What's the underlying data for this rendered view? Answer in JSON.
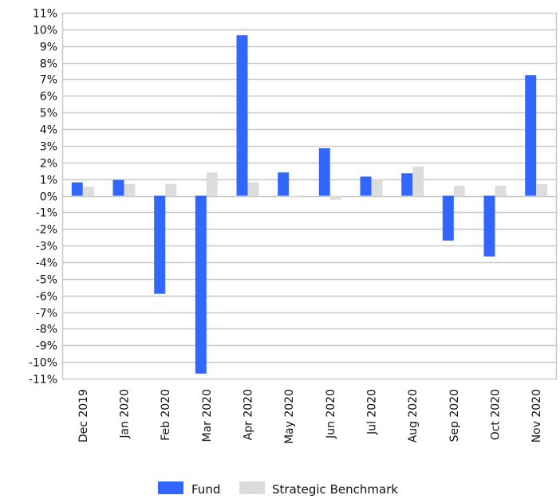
{
  "chart_data": {
    "type": "bar",
    "title": "",
    "xlabel": "",
    "ylabel": "",
    "categories": [
      "Dec 2019",
      "Jan 2020",
      "Feb 2020",
      "Mar 2020",
      "Apr 2020",
      "May 2020",
      "Jun 2020",
      "Jul 2020",
      "Aug 2020",
      "Sep 2020",
      "Oct 2020",
      "Nov 2020"
    ],
    "series": [
      {
        "name": "Fund",
        "color": "#3366ff",
        "values": [
          0.8,
          0.95,
          -5.9,
          -10.7,
          9.65,
          1.4,
          2.85,
          1.15,
          1.35,
          -2.7,
          -3.65,
          7.25
        ]
      },
      {
        "name": "Strategic Benchmark",
        "color": "#dcdcdc",
        "values": [
          0.55,
          0.7,
          0.7,
          1.4,
          0.8,
          -0.1,
          -0.25,
          1.0,
          1.75,
          0.6,
          0.6,
          0.7
        ]
      }
    ],
    "ylim": [
      -11,
      11
    ],
    "yticks": [
      11,
      10,
      9,
      8,
      7,
      6,
      5,
      4,
      3,
      2,
      1,
      0,
      -1,
      -2,
      -3,
      -4,
      -5,
      -6,
      -7,
      -8,
      -9,
      -10,
      -11
    ],
    "ytick_format": "%",
    "grid": true,
    "legend_position": "bottom-center"
  }
}
